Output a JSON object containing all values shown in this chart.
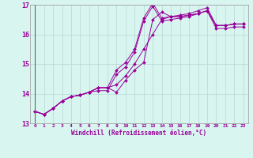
{
  "xlabel": "Windchill (Refroidissement éolien,°C)",
  "ylabel": "",
  "bg_color": "#d8f5f0",
  "grid_color": "#b8d8d4",
  "line_color": "#990099",
  "xmin": -0.5,
  "xmax": 23.5,
  "ymin": 13.0,
  "ymax": 17.0,
  "yticks": [
    13,
    14,
    15,
    16,
    17
  ],
  "xtick_labels": [
    "0",
    "1",
    "2",
    "3",
    "4",
    "5",
    "6",
    "7",
    "8",
    "9",
    "10",
    "11",
    "12",
    "13",
    "14",
    "15",
    "16",
    "17",
    "18",
    "19",
    "20",
    "21",
    "22",
    "23"
  ],
  "series": [
    [
      13.4,
      13.3,
      13.5,
      13.75,
      13.9,
      13.95,
      14.05,
      14.2,
      14.2,
      14.05,
      14.45,
      14.8,
      15.05,
      16.5,
      16.75,
      16.6,
      16.6,
      16.65,
      16.7,
      16.8,
      16.3,
      16.3,
      16.35,
      16.35
    ],
    [
      13.4,
      13.3,
      13.5,
      13.75,
      13.9,
      13.95,
      14.05,
      14.2,
      14.2,
      14.8,
      15.05,
      15.5,
      16.55,
      17.05,
      16.55,
      16.6,
      16.65,
      16.7,
      16.8,
      16.9,
      16.3,
      16.3,
      16.35,
      16.35
    ],
    [
      13.4,
      13.3,
      13.5,
      13.75,
      13.9,
      13.95,
      14.05,
      14.1,
      14.1,
      14.65,
      14.9,
      15.4,
      16.45,
      16.95,
      16.45,
      16.5,
      16.55,
      16.6,
      16.7,
      16.8,
      16.2,
      16.2,
      16.25,
      16.25
    ],
    [
      13.4,
      13.3,
      13.5,
      13.75,
      13.9,
      13.95,
      14.05,
      14.2,
      14.2,
      14.3,
      14.6,
      15.0,
      15.5,
      16.0,
      16.5,
      16.6,
      16.6,
      16.65,
      16.7,
      16.8,
      16.3,
      16.3,
      16.35,
      16.35
    ]
  ]
}
